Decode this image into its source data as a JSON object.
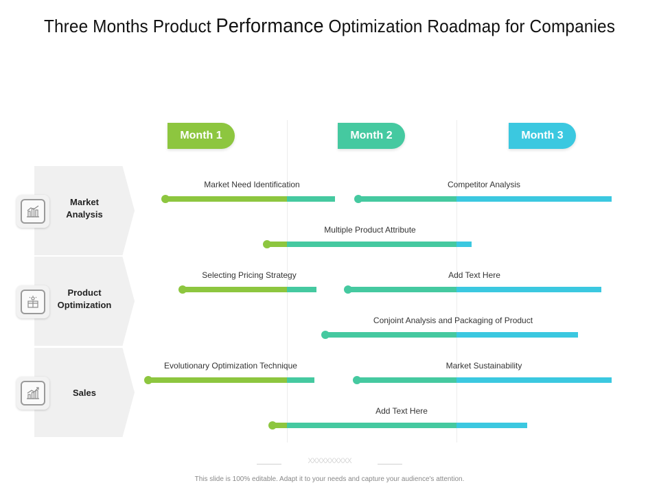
{
  "title": {
    "before": "Three Months Product ",
    "emphasis": "Performance",
    "after": " Optimization Roadmap for Companies"
  },
  "months": [
    {
      "label": "Month 1",
      "color": "#8dc63f"
    },
    {
      "label": "Month 2",
      "color": "#45c9a0"
    },
    {
      "label": "Month 3",
      "color": "#3bc8e0"
    }
  ],
  "rows": [
    {
      "line1": "Market",
      "line2": "Analysis",
      "icon": "bar-chart-icon"
    },
    {
      "line1": "Product",
      "line2": "Optimization",
      "icon": "gift-box-icon"
    },
    {
      "line1": "Sales",
      "line2": "",
      "icon": "growth-chart-icon"
    }
  ],
  "tasks": [
    {
      "label": "Market Need Identification"
    },
    {
      "label": "Competitor Analysis"
    },
    {
      "label": "Multiple Product Attribute"
    },
    {
      "label": "Selecting Pricing Strategy"
    },
    {
      "label": "Add Text Here"
    },
    {
      "label": "Conjoint Analysis and Packaging of Product"
    },
    {
      "label": "Evolutionary Optimization Technique"
    },
    {
      "label": "Market Sustainability"
    },
    {
      "label": "Add Text Here"
    }
  ],
  "footer": {
    "note": "This slide is 100% editable. Adapt it to your needs and capture your audience's attention.",
    "decoration": "XXXXXXXXXX"
  },
  "colors": {
    "green": "#8dc63f",
    "teal": "#45c9a0",
    "cyan": "#3bc8e0"
  }
}
